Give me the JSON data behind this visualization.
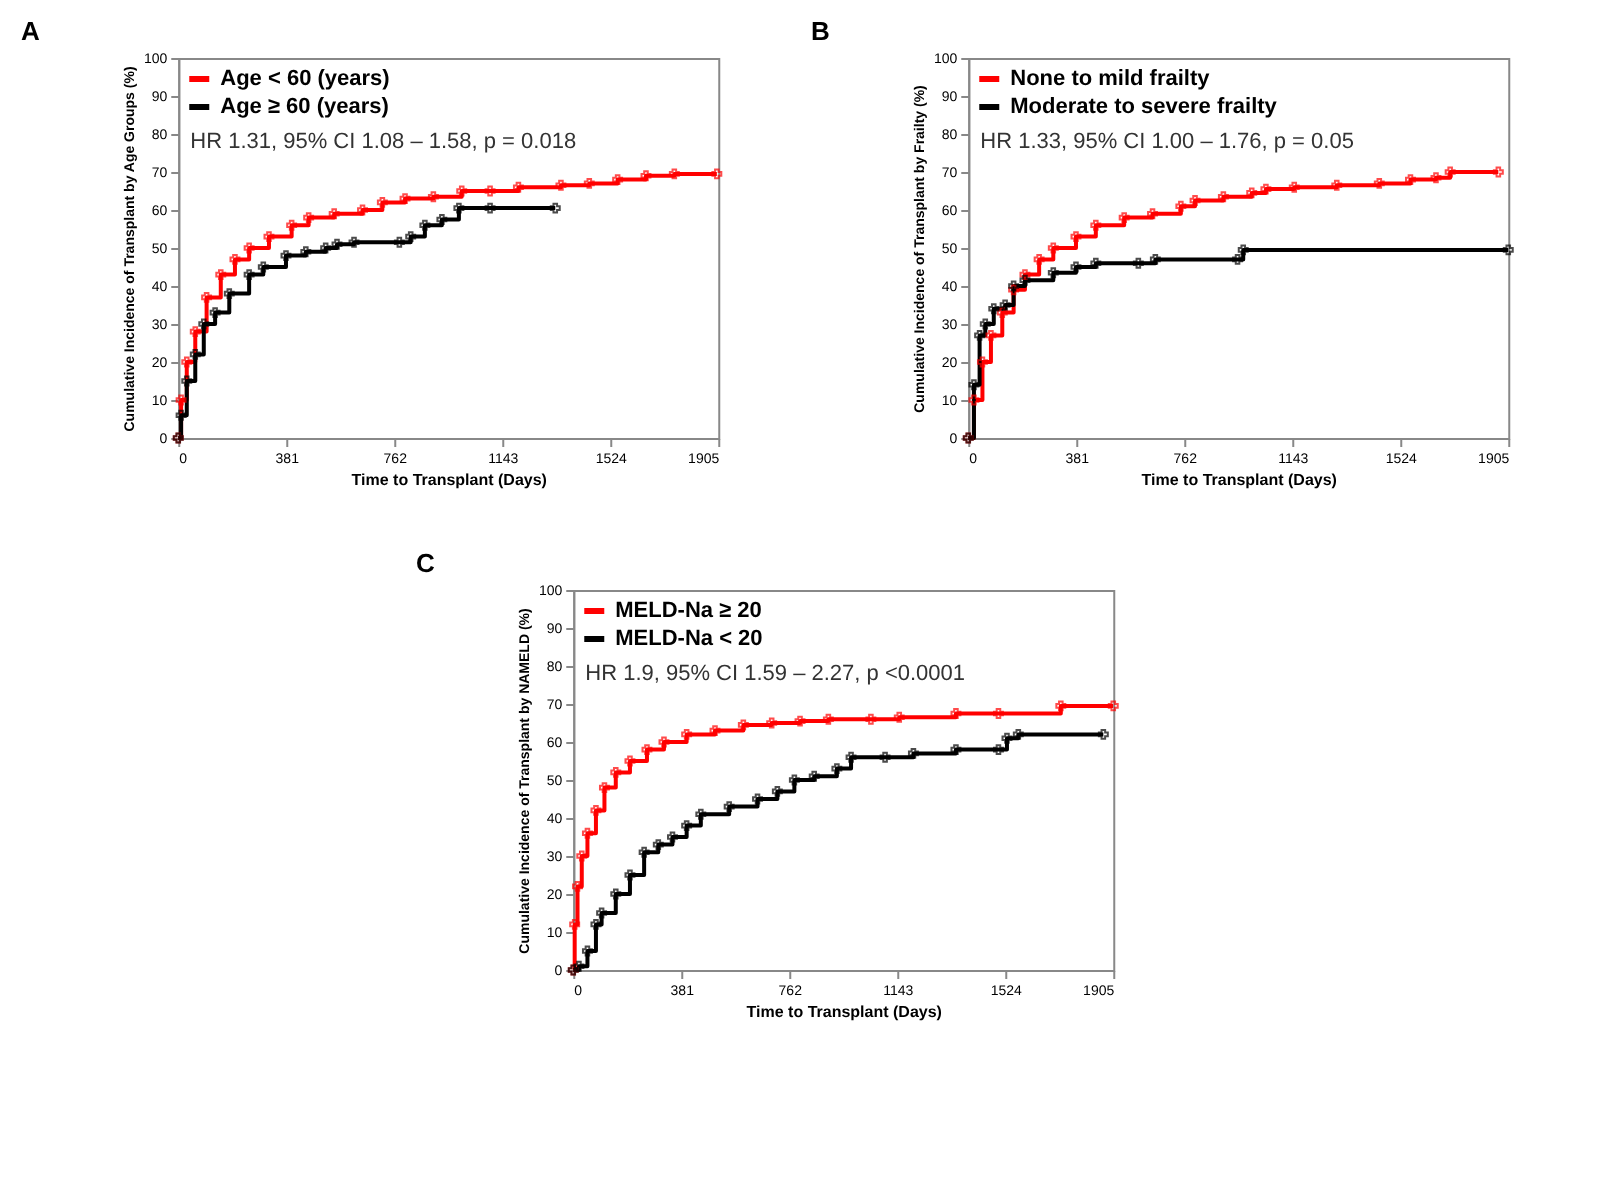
{
  "chart_data": [
    {
      "type": "step",
      "title": "A",
      "xlabel": "Time to Transplant (Days)",
      "ylabel": "Cumulative Incidence of Transplant by Age Groups (%)",
      "annotations": [
        "HR 1.31, 95% CI 1.08 – 1.58, p = 0.018"
      ],
      "xlim": [
        0,
        1905
      ],
      "xticks": [
        0,
        381,
        762,
        1143,
        1524,
        1905
      ],
      "ylim": [
        0,
        100
      ],
      "yticks": [
        0,
        10,
        20,
        30,
        40,
        50,
        60,
        70,
        80,
        90,
        100
      ],
      "grid": false,
      "legend": "top left",
      "marker": "cross",
      "series": [
        {
          "name": "Age < 60 (years)",
          "color": "#ff0000",
          "x": [
            0,
            10,
            30,
            60,
            100,
            150,
            200,
            250,
            320,
            400,
            460,
            550,
            650,
            720,
            800,
            900,
            1000,
            1100,
            1200,
            1350,
            1450,
            1550,
            1650,
            1750,
            1900
          ],
          "values": [
            0,
            10,
            20,
            28,
            37,
            43,
            47,
            50,
            53,
            56,
            58,
            59,
            60,
            62,
            63,
            63.5,
            65,
            65,
            66,
            66.5,
            67,
            68,
            69,
            69.5,
            69.5
          ]
        },
        {
          "name": "Age ≥ 60 (years)",
          "color": "#000000",
          "x": [
            0,
            10,
            30,
            60,
            90,
            130,
            180,
            250,
            300,
            380,
            450,
            520,
            560,
            620,
            780,
            820,
            870,
            930,
            990,
            1100,
            1330
          ],
          "values": [
            0,
            6,
            15,
            22,
            30,
            33,
            38,
            43,
            45,
            48,
            49,
            50,
            51,
            51.5,
            51.5,
            53,
            56,
            57.5,
            60.5,
            60.5,
            60.5
          ]
        }
      ]
    },
    {
      "type": "step",
      "title": "B",
      "xlabel": "Time to Transplant (Days)",
      "ylabel": "Cumulative Incidence of Transplant by Frailty (%)",
      "annotations": [
        "HR 1.33, 95% CI 1.00 – 1.76, p = 0.05"
      ],
      "xlim": [
        0,
        1905
      ],
      "xticks": [
        0,
        381,
        762,
        1143,
        1524,
        1905
      ],
      "ylim": [
        0,
        100
      ],
      "yticks": [
        0,
        10,
        20,
        30,
        40,
        50,
        60,
        70,
        80,
        90,
        100
      ],
      "grid": false,
      "legend": "top left",
      "marker": "cross",
      "series": [
        {
          "name": "None to mild frailty",
          "color": "#ff0000",
          "x": [
            0,
            20,
            50,
            80,
            120,
            160,
            200,
            250,
            300,
            380,
            450,
            550,
            650,
            750,
            800,
            900,
            1000,
            1050,
            1150,
            1300,
            1450,
            1560,
            1650,
            1700,
            1870
          ],
          "values": [
            0,
            10,
            20,
            27,
            33,
            39,
            43,
            47,
            50,
            53,
            56,
            58,
            59,
            61,
            62.5,
            63.5,
            64.5,
            65.5,
            66,
            66.5,
            67,
            68,
            68.5,
            70,
            70
          ]
        },
        {
          "name": "Moderate to severe frailty",
          "color": "#000000",
          "x": [
            0,
            20,
            40,
            60,
            90,
            130,
            160,
            200,
            300,
            380,
            450,
            600,
            660,
            950,
            970,
            1905
          ],
          "values": [
            0,
            14,
            27,
            30,
            34,
            35,
            40,
            41.5,
            43.5,
            45,
            46,
            46,
            47,
            47,
            49.5,
            49.5
          ]
        }
      ]
    },
    {
      "type": "step",
      "title": "C",
      "xlabel": "Time to Transplant (Days)",
      "ylabel": "Cumulative Incidence of Transplant by NAMELD (%)",
      "annotations": [
        "HR 1.9, 95% CI 1.59 – 2.27, p <0.0001"
      ],
      "xlim": [
        0,
        1905
      ],
      "xticks": [
        0,
        381,
        762,
        1143,
        1524,
        1905
      ],
      "ylim": [
        0,
        100
      ],
      "yticks": [
        0,
        10,
        20,
        30,
        40,
        50,
        60,
        70,
        80,
        90,
        100
      ],
      "grid": false,
      "legend": "top left",
      "marker": "cross",
      "series": [
        {
          "name": "MELD-Na ≥ 20",
          "color": "#ff0000",
          "x": [
            0,
            5,
            15,
            30,
            50,
            80,
            110,
            150,
            200,
            260,
            320,
            400,
            500,
            600,
            700,
            800,
            900,
            1050,
            1150,
            1350,
            1500,
            1720,
            1905
          ],
          "values": [
            0,
            12,
            22,
            30,
            36,
            42,
            48,
            52,
            55,
            58,
            60,
            62,
            63,
            64.5,
            65,
            65.5,
            66,
            66,
            66.5,
            67.5,
            67.5,
            69.5,
            69.5
          ]
        },
        {
          "name": "MELD-Na < 20",
          "color": "#000000",
          "x": [
            0,
            20,
            50,
            80,
            100,
            150,
            200,
            250,
            300,
            350,
            400,
            450,
            550,
            650,
            720,
            780,
            850,
            930,
            980,
            1100,
            1200,
            1350,
            1500,
            1530,
            1570,
            1870
          ],
          "values": [
            0,
            1,
            5,
            12,
            15,
            20,
            25,
            31,
            33,
            35,
            38,
            41,
            43,
            45,
            47,
            50,
            51,
            53,
            56,
            56,
            57,
            58,
            58,
            61,
            62,
            62
          ]
        }
      ]
    }
  ]
}
